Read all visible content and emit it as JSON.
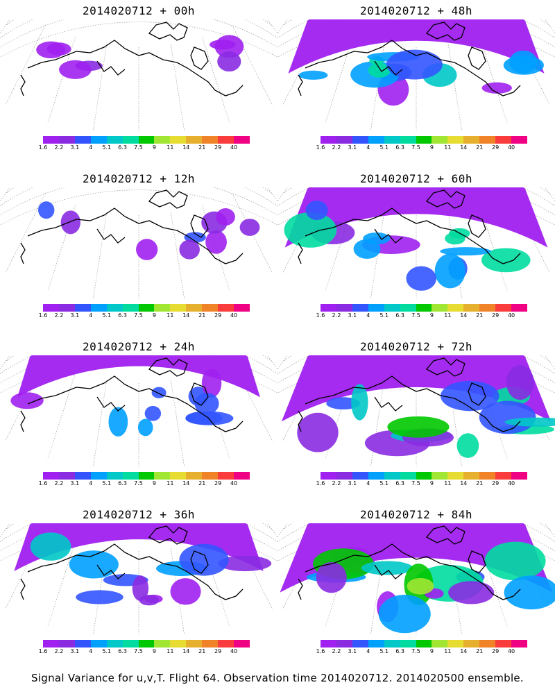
{
  "colors": [
    "#a020f0",
    "#8a2be2",
    "#3355ff",
    "#00a0ff",
    "#00c8c8",
    "#00dca0",
    "#00c800",
    "#a0e632",
    "#e6dc32",
    "#e6af2d",
    "#f08228",
    "#fa3c3c",
    "#f00082"
  ],
  "colorbar_labels": [
    "1.6",
    "2.2",
    "3.1",
    "4",
    "5.1",
    "6.3",
    "7.5",
    "9",
    "11",
    "14",
    "21",
    "29",
    "40"
  ],
  "panels": [
    {
      "title": "2014020712 + 00h",
      "level": 0.1
    },
    {
      "title": "2014020712 + 48h",
      "level": 0.55
    },
    {
      "title": "2014020712 + 12h",
      "level": 0.25
    },
    {
      "title": "2014020712 + 60h",
      "level": 0.65
    },
    {
      "title": "2014020712 + 24h",
      "level": 0.35
    },
    {
      "title": "2014020712 + 72h",
      "level": 0.75
    },
    {
      "title": "2014020712 + 36h",
      "level": 0.45
    },
    {
      "title": "2014020712 + 84h",
      "level": 0.85
    }
  ],
  "footer": "Signal Variance for u,v,T. Flight 64. Observation time 2014020712. 2014020500 ensemble."
}
